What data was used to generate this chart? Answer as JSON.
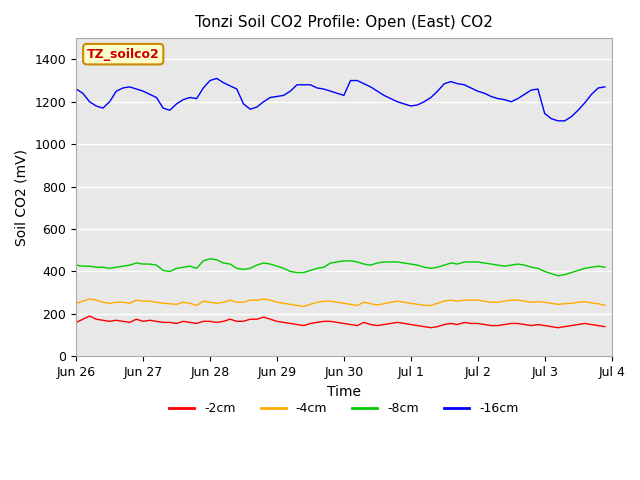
{
  "title": "Tonzi Soil CO2 Profile: Open (East) CO2",
  "ylabel": "Soil CO2 (mV)",
  "xlabel": "Time",
  "watermark": "TZ_soilco2",
  "ylim": [
    0,
    1500
  ],
  "yticks": [
    0,
    200,
    400,
    600,
    800,
    1000,
    1200,
    1400
  ],
  "xstart": 0,
  "xend": 8,
  "xtick_labels": [
    "Jun 26",
    "Jun 27",
    "Jun 28",
    "Jun 29",
    "Jun 30",
    "Jul 1",
    "Jul 2",
    "Jul 3",
    "Jul 4"
  ],
  "bg_color": "#e8e8e8",
  "fig_color": "#ffffff",
  "legend_entries": [
    "-2cm",
    "-4cm",
    "-8cm",
    "-16cm"
  ],
  "legend_colors": [
    "#ff0000",
    "#ffaa00",
    "#00cc00",
    "#0000ff"
  ],
  "series_colors": [
    "#ff0000",
    "#ffaa00",
    "#00cc00",
    "#0000ff"
  ],
  "series_2cm": [
    160,
    175,
    190,
    175,
    170,
    165,
    170,
    165,
    160,
    175,
    165,
    170,
    165,
    160,
    160,
    155,
    165,
    160,
    155,
    165,
    165,
    160,
    165,
    175,
    165,
    165,
    175,
    175,
    185,
    175,
    165,
    160,
    155,
    150,
    145,
    155,
    160,
    165,
    165,
    160,
    155,
    150,
    145,
    160,
    150,
    145,
    150,
    155,
    160,
    155,
    150,
    145,
    140,
    135,
    140,
    150,
    155,
    150,
    160,
    155,
    155,
    150,
    145,
    145,
    150,
    155,
    155,
    150,
    145,
    150,
    145,
    140,
    135,
    140,
    145,
    150,
    155,
    150,
    145,
    140
  ],
  "series_4cm": [
    250,
    260,
    270,
    265,
    255,
    250,
    255,
    255,
    250,
    265,
    260,
    260,
    255,
    250,
    248,
    245,
    255,
    250,
    240,
    260,
    255,
    250,
    255,
    265,
    255,
    255,
    265,
    265,
    270,
    265,
    255,
    250,
    245,
    240,
    235,
    245,
    255,
    260,
    260,
    255,
    250,
    245,
    240,
    255,
    248,
    242,
    248,
    255,
    260,
    255,
    250,
    245,
    240,
    240,
    250,
    260,
    265,
    260,
    265,
    265,
    265,
    260,
    255,
    255,
    260,
    265,
    265,
    260,
    255,
    258,
    255,
    250,
    245,
    248,
    250,
    255,
    258,
    252,
    248,
    240
  ],
  "series_8cm": [
    430,
    425,
    425,
    420,
    420,
    415,
    420,
    425,
    430,
    440,
    435,
    435,
    430,
    405,
    400,
    415,
    420,
    425,
    415,
    450,
    460,
    455,
    440,
    435,
    415,
    410,
    415,
    430,
    440,
    435,
    425,
    415,
    400,
    395,
    395,
    405,
    415,
    420,
    440,
    445,
    450,
    450,
    445,
    435,
    430,
    440,
    445,
    445,
    445,
    440,
    435,
    430,
    420,
    415,
    420,
    430,
    440,
    435,
    445,
    445,
    445,
    440,
    435,
    430,
    425,
    430,
    435,
    430,
    420,
    415,
    400,
    390,
    380,
    385,
    395,
    405,
    415,
    420,
    425,
    420
  ],
  "series_16cm": [
    1260,
    1240,
    1200,
    1180,
    1170,
    1200,
    1250,
    1265,
    1270,
    1260,
    1250,
    1235,
    1220,
    1170,
    1160,
    1190,
    1210,
    1220,
    1215,
    1265,
    1300,
    1310,
    1290,
    1275,
    1260,
    1190,
    1165,
    1175,
    1200,
    1220,
    1225,
    1230,
    1250,
    1280,
    1280,
    1280,
    1265,
    1260,
    1250,
    1240,
    1230,
    1300,
    1300,
    1285,
    1270,
    1250,
    1230,
    1215,
    1200,
    1190,
    1180,
    1185,
    1200,
    1220,
    1250,
    1285,
    1295,
    1285,
    1280,
    1265,
    1250,
    1240,
    1225,
    1215,
    1210,
    1200,
    1215,
    1235,
    1255,
    1260,
    1145,
    1120,
    1110,
    1110,
    1130,
    1160,
    1195,
    1235,
    1265,
    1270
  ]
}
